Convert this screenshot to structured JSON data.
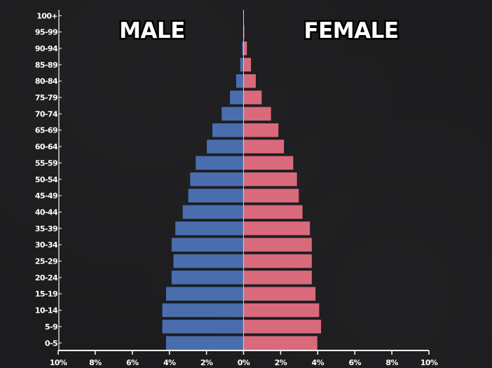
{
  "chart_data": {
    "type": "bar",
    "orientation": "horizontal",
    "layout": "population-pyramid",
    "categories": [
      "0-5",
      "5-9",
      "10-14",
      "15-19",
      "20-24",
      "25-29",
      "30-34",
      "35-39",
      "40-44",
      "45-49",
      "50-54",
      "55-59",
      "60-64",
      "65-69",
      "70-74",
      "75-79",
      "80-84",
      "85-89",
      "90-94",
      "95-99",
      "100+"
    ],
    "series": [
      {
        "name": "MALE",
        "color": "#4a6ead",
        "values": [
          4.2,
          4.4,
          4.4,
          4.2,
          3.9,
          3.8,
          3.9,
          3.7,
          3.3,
          3.0,
          2.9,
          2.6,
          2.0,
          1.7,
          1.2,
          0.75,
          0.42,
          0.2,
          0.1,
          0.04,
          0.02
        ]
      },
      {
        "name": "FEMALE",
        "color": "#d96a7c",
        "values": [
          4.0,
          4.2,
          4.1,
          3.9,
          3.7,
          3.7,
          3.7,
          3.6,
          3.2,
          3.0,
          2.9,
          2.7,
          2.2,
          1.9,
          1.5,
          1.0,
          0.68,
          0.42,
          0.2,
          0.06,
          0.02
        ]
      }
    ],
    "xticks": [
      "10%",
      "8%",
      "6%",
      "4%",
      "2%",
      "0%",
      "2%",
      "4%",
      "6%",
      "8%",
      "10%"
    ],
    "xlim": [
      -10,
      10
    ],
    "xlabel": "",
    "ylabel": "",
    "grid": false,
    "background_color": "#1c1c1e",
    "axis_color": "#ffffff",
    "bar_outline_color": "#1b1d24"
  }
}
